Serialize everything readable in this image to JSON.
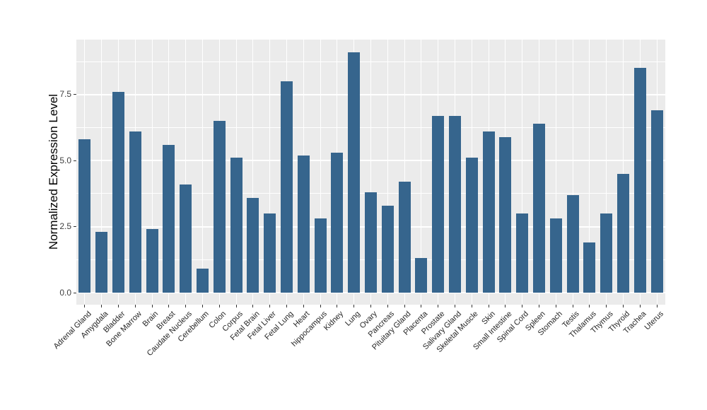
{
  "chart_data": {
    "type": "bar",
    "title": "",
    "xlabel": "",
    "ylabel": "Normalized Expression Level",
    "categories": [
      "Adrenal Gland",
      "Amygdala",
      "Bladder",
      "Bone Marrow",
      "Brain",
      "Breast",
      "Caudate Nucleus",
      "Cerebellum",
      "Colon",
      "Corpus",
      "Fetal Brain",
      "Fetal Liver",
      "Fetal Lung",
      "Heart",
      "hippocampus",
      "Kidney",
      "Lung",
      "Ovary",
      "Pancreas",
      "Pituitary Gland",
      "Placenta",
      "Prostate",
      "Salivary Gland",
      "Skeletal Muscle",
      "Skin",
      "Small Intestine",
      "Spinal Cord",
      "Spleen",
      "Stomach",
      "Testis",
      "Thalamus",
      "Thymus",
      "Thyroid",
      "Trachea",
      "Uterus"
    ],
    "values": [
      5.8,
      2.3,
      7.6,
      6.1,
      2.4,
      5.6,
      4.1,
      0.9,
      6.5,
      5.1,
      3.6,
      3.0,
      8.0,
      5.2,
      2.8,
      5.3,
      9.1,
      3.8,
      3.3,
      4.2,
      1.3,
      6.7,
      6.7,
      5.1,
      6.1,
      5.9,
      3.0,
      6.4,
      2.8,
      3.7,
      1.9,
      3.0,
      4.5,
      8.5,
      6.9
    ],
    "yticks": [
      0.0,
      2.5,
      5.0,
      7.5
    ],
    "ytick_labels": [
      "0.0",
      "2.5",
      "5.0",
      "7.5"
    ],
    "minor_gridlines": [
      1.25,
      3.75,
      6.25,
      8.75
    ],
    "ylim": [
      -0.45,
      9.55
    ],
    "grid": true,
    "legend": false,
    "style": {
      "bar_color": "#36658d",
      "panel_background": "#ebebeb",
      "grid_color": "#ffffff",
      "figure_background": "#ffffff",
      "tick_mark_color": "#333333",
      "ytick_text_color": "#404040",
      "xtick_text_color": "#262626",
      "axis_title_color": "#000000"
    }
  }
}
